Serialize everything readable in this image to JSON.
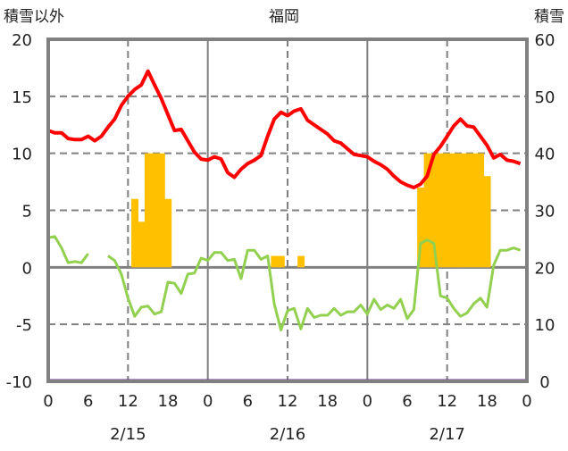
{
  "chart_data": {
    "type": "line",
    "title": "福岡",
    "ylabel_left": "積雪以外",
    "ylabel_right": "積雪",
    "ylim_left": [
      -10,
      20
    ],
    "ylim_right": [
      0,
      60
    ],
    "yticks_left": [
      "20",
      "15",
      "10",
      "5",
      "0",
      "-5",
      "-10"
    ],
    "yticks_right": [
      "60",
      "50",
      "40",
      "30",
      "20",
      "10",
      "0"
    ],
    "xticks": [
      "0",
      "6",
      "12",
      "18",
      "0",
      "6",
      "12",
      "18",
      "0",
      "6",
      "12",
      "18",
      "0"
    ],
    "date_labels": [
      "2/15",
      "2/16",
      "2/17"
    ],
    "x_hours": "0..71 hourly",
    "grid": true,
    "colors": {
      "temperature": "#ff0000",
      "green_series": "#92d050",
      "bars": "#ffc000",
      "snow_depth": "#7030a0",
      "axis": "#808080"
    },
    "series": [
      {
        "name": "red",
        "axis": "left",
        "values": [
          12.0,
          11.8,
          11.8,
          11.3,
          11.2,
          11.2,
          11.5,
          11.1,
          11.5,
          12.3,
          13.0,
          14.2,
          15.0,
          15.6,
          16.0,
          17.2,
          16.0,
          14.8,
          13.4,
          12.0,
          12.1,
          11.1,
          10.1,
          9.5,
          9.4,
          9.7,
          9.5,
          8.3,
          7.9,
          8.6,
          9.1,
          9.4,
          9.8,
          11.5,
          13.0,
          13.6,
          13.3,
          13.7,
          13.9,
          12.9,
          12.5,
          12.1,
          11.7,
          11.1,
          10.9,
          10.4,
          9.9,
          9.8,
          9.7,
          9.3,
          9.0,
          8.6,
          8.0,
          7.5,
          7.2,
          7.0,
          7.3,
          8.0,
          9.9,
          10.6,
          11.5,
          12.4,
          13.0,
          12.4,
          12.3,
          11.5,
          10.7,
          9.6,
          9.9,
          9.4,
          9.3,
          9.1
        ]
      },
      {
        "name": "green",
        "axis": "left",
        "values": [
          2.6,
          2.7,
          1.7,
          0.4,
          0.5,
          0.4,
          1.2,
          null,
          null,
          1.0,
          0.6,
          -0.6,
          -2.7,
          -4.3,
          -3.5,
          -3.4,
          -4.1,
          -3.9,
          -1.3,
          -1.4,
          -2.3,
          -0.6,
          -0.5,
          0.8,
          0.6,
          1.3,
          1.3,
          0.6,
          0.7,
          -1.0,
          1.5,
          1.5,
          0.7,
          1.0,
          -3.2,
          -5.5,
          -3.8,
          -3.6,
          -5.4,
          -3.6,
          -4.4,
          -4.2,
          -4.2,
          -3.6,
          -4.2,
          -3.9,
          -3.9,
          -3.3,
          -4.1,
          -2.8,
          -3.7,
          -3.3,
          -3.6,
          -2.8,
          -4.5,
          -3.7,
          2.1,
          2.4,
          2.1,
          -2.5,
          -2.7,
          -3.6,
          -4.3,
          -4.0,
          -3.2,
          -2.7,
          -3.5,
          0.2,
          1.5,
          1.5,
          1.7,
          1.5
        ]
      },
      {
        "name": "snow-depth",
        "axis": "right",
        "values": "0 for all hours"
      }
    ],
    "bars": {
      "axis": "left",
      "hours": [
        13,
        14,
        15,
        16,
        17,
        18,
        34,
        35,
        38,
        56,
        57,
        58,
        59,
        60,
        61,
        62,
        63,
        64,
        65,
        66
      ],
      "values": [
        6,
        4,
        10,
        10,
        10,
        6,
        1,
        1,
        1,
        7,
        10,
        10,
        10,
        10,
        10,
        10,
        10,
        10,
        10,
        8
      ]
    }
  }
}
